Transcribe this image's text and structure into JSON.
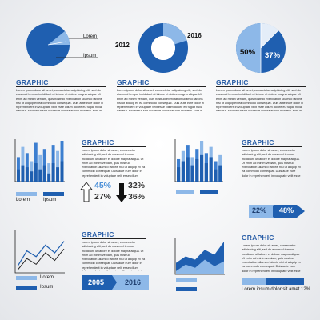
{
  "colors": {
    "dark_blue": "#1f5fb0",
    "mid_blue": "#3d7fd0",
    "light_blue": "#8db8e8",
    "pale_blue": "#cfe0f4",
    "heading_blue": "#2a5fa8",
    "ink": "#222222"
  },
  "heading": "GRAPHIC",
  "lorem_text": "Lorem ipsum dolor sit amet, consectetur adipisicing elit, sed do eiusmod tempor incididunt ut labore et dolore magna aliqua. Ut enim ad minim veniam, quis nostrud exercitation ullamco laboris nisi ut aliquip ex ea commodo consequat. Duis aute irure dolor in reprehenderit in voluptate velit esse cillum dolore eu fugiat nulla pariatur. Excepteur sint occaecat cupidatat non proident, sunt in culpa qui officia deserunt mollit anim id est laborum.",
  "section1": {
    "label_lorem": "Lorem",
    "label_ipsum": "Ipsum",
    "label_2012": "2012",
    "label_2016": "2016",
    "pie_left_label": "50%",
    "pie_right_label": "37%"
  },
  "section2": {
    "legend_lorem": "Lorem",
    "legend_ipsum": "Ipsum",
    "stat_up_a": "45%",
    "stat_up_b": "27%",
    "stat_down_a": "32%",
    "stat_down_b": "36%",
    "arrow_a": "22%",
    "arrow_b": "48%"
  },
  "section3": {
    "legend_lorem": "Lorem",
    "legend_ipsum": "Ipsum",
    "year_from": "2005",
    "year_to": "2016",
    "progress_caption": "Lorem ipsum dolor sit amet 12%",
    "progress_value": 0.12
  },
  "chart_data": [
    {
      "type": "pie",
      "slices": [
        {
          "label": "Lorem",
          "value": 0.17
        },
        {
          "label": "Ipsum",
          "value": 0.83
        }
      ]
    },
    {
      "type": "pie",
      "style": "donut",
      "slices": [
        {
          "label": "2012",
          "value": 0.2
        },
        {
          "label": "2016",
          "value": 0.8
        }
      ]
    },
    {
      "type": "pie",
      "slices": [
        {
          "label": "50%",
          "value": 0.5
        },
        {
          "label": "37%",
          "value": 0.37
        },
        {
          "label": "",
          "value": 0.13
        }
      ]
    },
    {
      "type": "bar",
      "series": [
        {
          "values": [
            0.6,
            0.85,
            0.7,
            0.5,
            0.95,
            0.65,
            0.8,
            0.45,
            0.9,
            0.75,
            1.0
          ]
        },
        {
          "values": [
            0.3,
            0.4,
            0.35,
            0.25,
            0.45,
            0.3,
            0.4,
            0.2,
            0.45,
            0.35,
            0.5
          ]
        }
      ]
    },
    {
      "type": "bar",
      "series": [
        {
          "values": [
            0.55,
            0.75,
            0.9,
            0.6,
            0.8,
            1.0,
            0.7,
            0.85,
            0.5,
            0.65
          ]
        },
        {
          "values": [
            0.35,
            0.5,
            0.6,
            0.4,
            0.55,
            0.65,
            0.45,
            0.6,
            0.3,
            0.4
          ]
        }
      ]
    },
    {
      "type": "line",
      "series": [
        {
          "values": [
            0.15,
            0.55,
            0.4,
            0.7,
            0.5,
            0.8
          ]
        },
        {
          "values": [
            0.05,
            0.35,
            0.2,
            0.5,
            0.3,
            0.6
          ]
        }
      ]
    },
    {
      "type": "area",
      "series": [
        {
          "values": [
            0.35,
            0.55,
            0.45,
            0.75,
            0.6,
            1.0
          ]
        },
        {
          "values": [
            0.1,
            0.3,
            0.2,
            0.45,
            0.25,
            0.4
          ]
        }
      ]
    }
  ]
}
